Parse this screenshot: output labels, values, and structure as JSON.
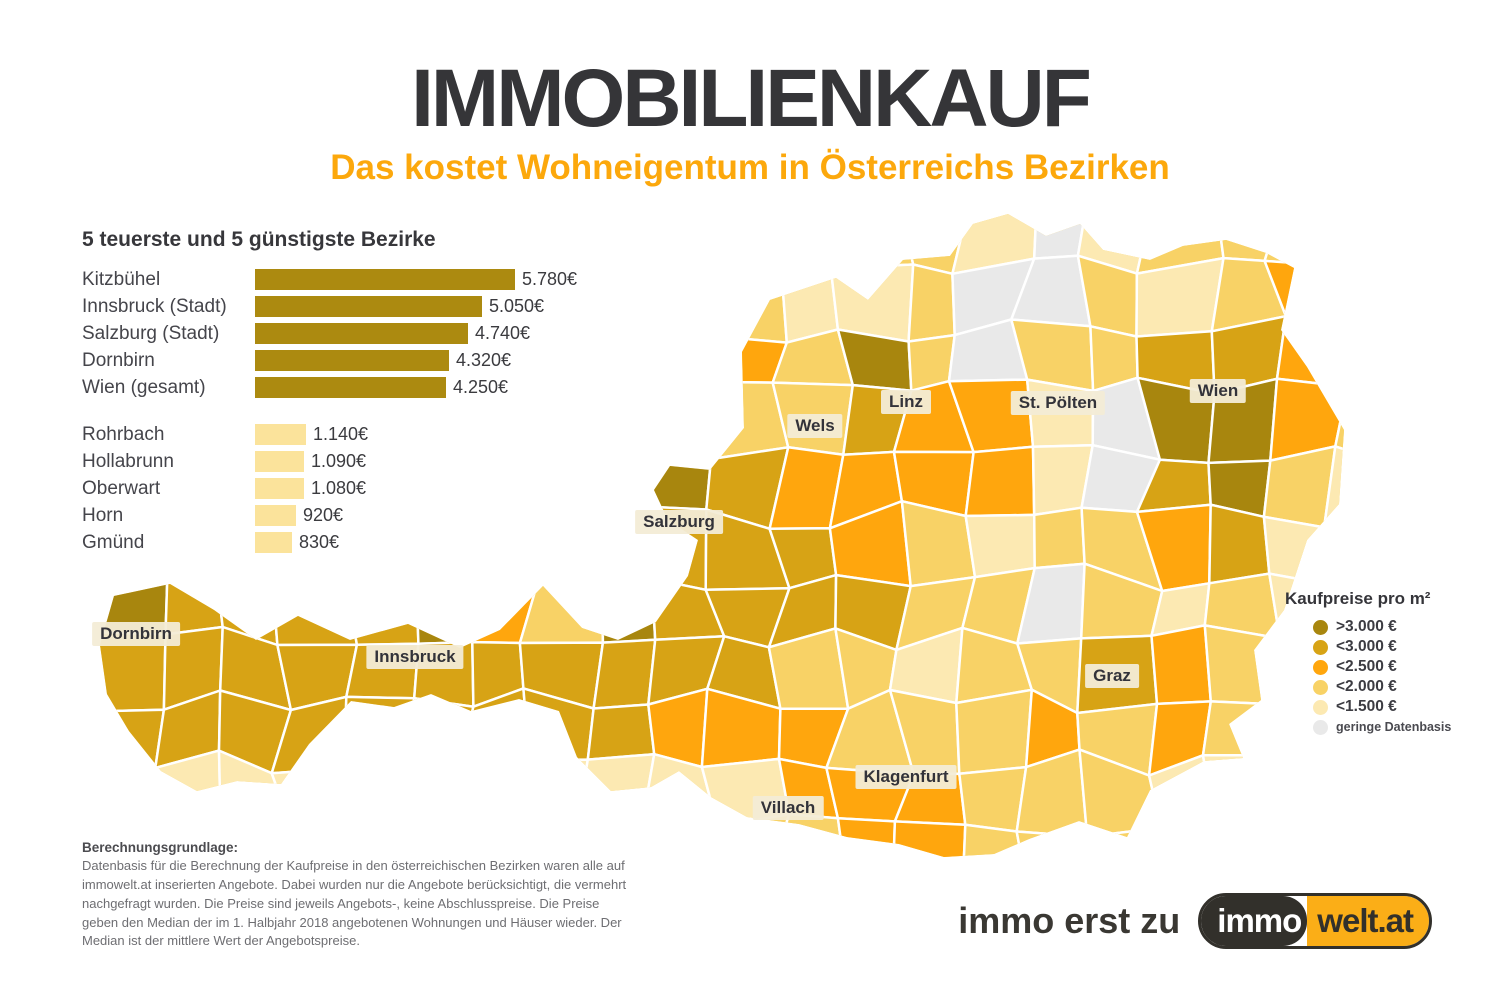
{
  "header": {
    "title": "IMMOBILIENKAUF",
    "subtitle": "Das kostet Wohneigentum in Österreichs Bezirken",
    "accent_color": "#fca80c",
    "title_color": "#353538"
  },
  "chart_data": {
    "type": "bar",
    "title": "5 teuerste und 5 günstigste Bezirke",
    "value_unit": "€ pro m²",
    "groups": [
      {
        "name": "teuerste",
        "bar_color": "#ac8a10",
        "items": [
          {
            "label": "Kitzbühel",
            "value": 5780,
            "display": "5.780€"
          },
          {
            "label": "Innsbruck (Stadt)",
            "value": 5050,
            "display": "5.050€"
          },
          {
            "label": "Salzburg (Stadt)",
            "value": 4740,
            "display": "4.740€"
          },
          {
            "label": "Dornbirn",
            "value": 4320,
            "display": "4.320€"
          },
          {
            "label": "Wien (gesamt)",
            "value": 4250,
            "display": "4.250€"
          }
        ]
      },
      {
        "name": "günstigste",
        "bar_color": "#fbe39b",
        "items": [
          {
            "label": "Rohrbach",
            "value": 1140,
            "display": "1.140€"
          },
          {
            "label": "Hollabrunn",
            "value": 1090,
            "display": "1.090€"
          },
          {
            "label": "Oberwart",
            "value": 1080,
            "display": "1.080€"
          },
          {
            "label": "Horn",
            "value": 920,
            "display": "920€"
          },
          {
            "label": "Gmünd",
            "value": 830,
            "display": "830€"
          }
        ]
      }
    ]
  },
  "map": {
    "city_labels": [
      "Wels",
      "Linz",
      "St. Pölten",
      "Wien",
      "Salzburg",
      "Dornbirn",
      "Innsbruck",
      "Graz",
      "Klagenfurt",
      "Villach"
    ]
  },
  "legend": {
    "title": "Kaufpreise pro m²",
    "items": [
      {
        "label": ">3.000 €",
        "color": "#a8860e"
      },
      {
        "label": "<3.000 €",
        "color": "#d7a315"
      },
      {
        "label": "<2.500 €",
        "color": "#ffa60d"
      },
      {
        "label": "<2.000 €",
        "color": "#f8d266"
      },
      {
        "label": "<1.500 €",
        "color": "#fce9b2"
      }
    ],
    "no_data": {
      "label": "geringe Datenbasis",
      "color": "#e9e9e9"
    }
  },
  "footnote": {
    "heading": "Berechnungsgrundlage:",
    "body": "Datenbasis für die Berechnung der Kaufpreise in den österreichischen Bezirken waren alle auf immowelt.at inserierten Angebote. Dabei wurden nur die Angebote berücksichtigt, die vermehrt nachgefragt wurden. Die Preise sind jeweils Angebots-, keine Abschlusspreise. Die Preise geben den Median der im 1. Halbjahr 2018 angebotenen Wohnungen und Häuser wieder. Der Median ist der mittlere Wert der Angebotspreise."
  },
  "footer": {
    "tagline": "immo erst zu",
    "logo": {
      "left": "immo",
      "right": "welt.at",
      "dark_color": "#32302b",
      "orange_color": "#fbae17",
      "left_text_color": "#ffffff"
    }
  }
}
